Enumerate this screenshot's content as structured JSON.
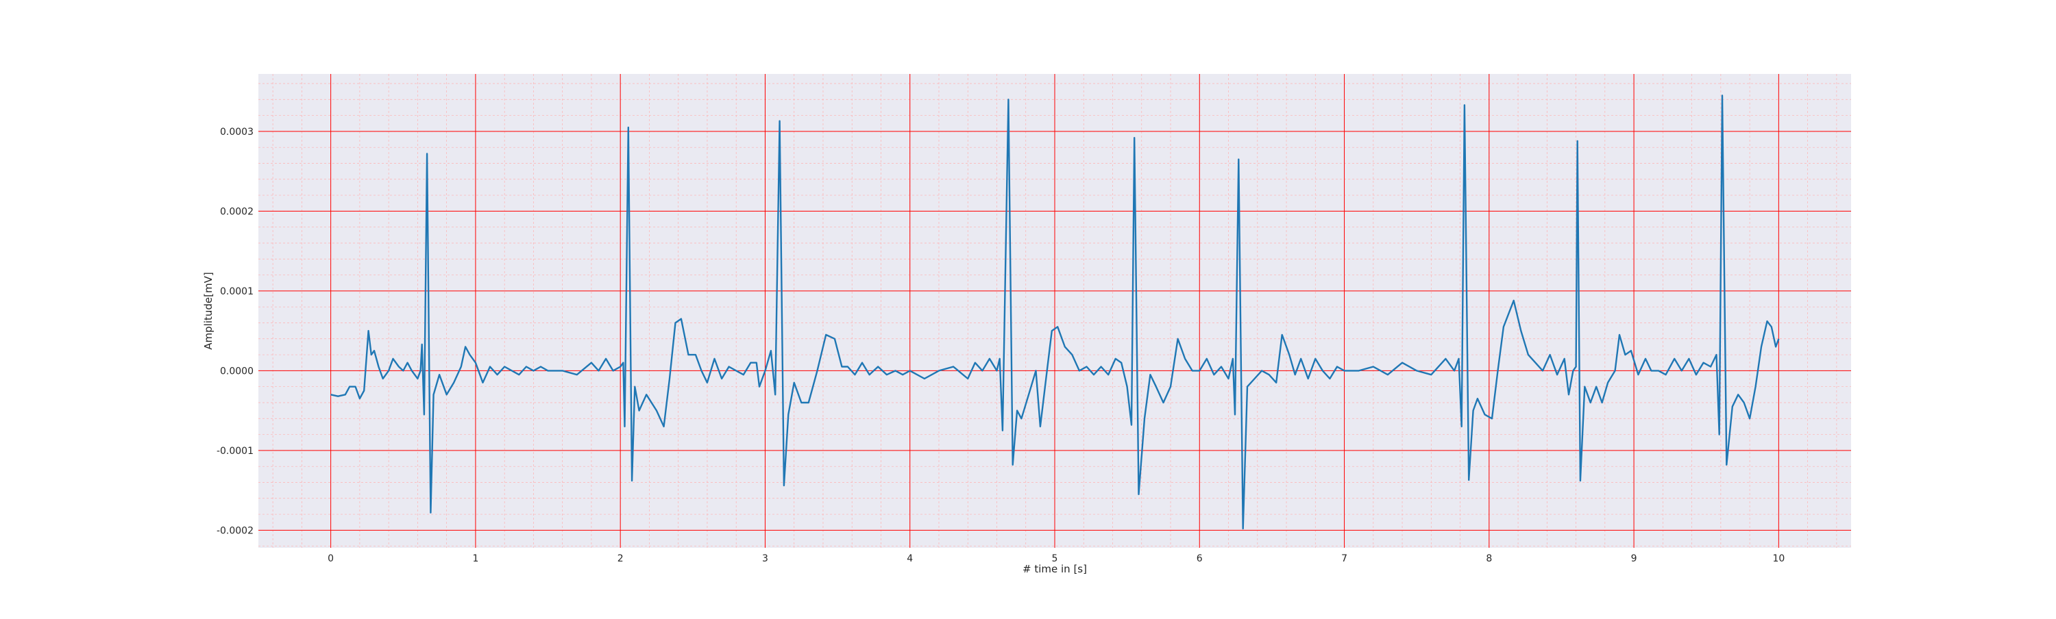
{
  "chart_data": {
    "type": "line",
    "title": "",
    "xlabel": "# time in [s]",
    "ylabel": "Amplitude[mV]",
    "xlim": [
      -0.5,
      10.5
    ],
    "ylim": [
      -0.000222,
      0.000372
    ],
    "x_ticks": [
      0,
      1,
      2,
      3,
      4,
      5,
      6,
      7,
      8,
      9,
      10
    ],
    "x_tick_labels": [
      "0",
      "1",
      "2",
      "3",
      "4",
      "5",
      "6",
      "7",
      "8",
      "9",
      "10"
    ],
    "y_ticks": [
      -0.0002,
      -0.0001,
      0.0,
      0.0001,
      0.0002,
      0.0003
    ],
    "y_tick_labels": [
      "-0.0002",
      "-0.0001",
      "0.0000",
      "0.0001",
      "0.0002",
      "0.0003"
    ],
    "grid": "major and minor",
    "colors": {
      "background": "#eaeaf2",
      "major_grid": "#ff0000",
      "minor_grid": "#ffb0b0",
      "line": "#1f77b4"
    },
    "series": [
      {
        "values_description_free": true,
        "points": [
          [
            0.0,
            -3e-05
          ],
          [
            0.05,
            -3.2e-05
          ],
          [
            0.1,
            -3e-05
          ],
          [
            0.13,
            -2e-05
          ],
          [
            0.17,
            -2e-05
          ],
          [
            0.2,
            -3.5e-05
          ],
          [
            0.23,
            -2.5e-05
          ],
          [
            0.26,
            5e-05
          ],
          [
            0.28,
            2e-05
          ],
          [
            0.3,
            2.5e-05
          ],
          [
            0.33,
            5e-06
          ],
          [
            0.36,
            -1e-05
          ],
          [
            0.4,
            0.0
          ],
          [
            0.43,
            1.5e-05
          ],
          [
            0.47,
            5e-06
          ],
          [
            0.5,
            0.0
          ],
          [
            0.53,
            1e-05
          ],
          [
            0.56,
            0.0
          ],
          [
            0.6,
            -1e-05
          ],
          [
            0.62,
            0.0
          ],
          [
            0.63,
            3.3e-05
          ],
          [
            0.645,
            -5.5e-05
          ],
          [
            0.665,
            0.000272
          ],
          [
            0.69,
            -0.000178
          ],
          [
            0.71,
            -3e-05
          ],
          [
            0.75,
            -5e-06
          ],
          [
            0.8,
            -3e-05
          ],
          [
            0.85,
            -1.5e-05
          ],
          [
            0.9,
            5e-06
          ],
          [
            0.93,
            3e-05
          ],
          [
            0.96,
            2e-05
          ],
          [
            1.0,
            1e-05
          ],
          [
            1.05,
            -1.5e-05
          ],
          [
            1.1,
            5e-06
          ],
          [
            1.15,
            -5e-06
          ],
          [
            1.2,
            5e-06
          ],
          [
            1.3,
            -5e-06
          ],
          [
            1.35,
            5e-06
          ],
          [
            1.4,
            0.0
          ],
          [
            1.45,
            5e-06
          ],
          [
            1.5,
            0.0
          ],
          [
            1.6,
            0.0
          ],
          [
            1.7,
            -5e-06
          ],
          [
            1.8,
            1e-05
          ],
          [
            1.85,
            0.0
          ],
          [
            1.9,
            1.5e-05
          ],
          [
            1.95,
            0.0
          ],
          [
            2.0,
            5e-06
          ],
          [
            2.02,
            1e-05
          ],
          [
            2.03,
            -7e-05
          ],
          [
            2.055,
            0.000305
          ],
          [
            2.08,
            -0.000138
          ],
          [
            2.1,
            -2e-05
          ],
          [
            2.13,
            -5e-05
          ],
          [
            2.18,
            -3e-05
          ],
          [
            2.25,
            -5e-05
          ],
          [
            2.3,
            -7e-05
          ],
          [
            2.34,
            -1e-05
          ],
          [
            2.38,
            6e-05
          ],
          [
            2.42,
            6.5e-05
          ],
          [
            2.47,
            2e-05
          ],
          [
            2.52,
            2e-05
          ],
          [
            2.56,
            0.0
          ],
          [
            2.6,
            -1.5e-05
          ],
          [
            2.65,
            1.5e-05
          ],
          [
            2.7,
            -1e-05
          ],
          [
            2.75,
            5e-06
          ],
          [
            2.8,
            0.0
          ],
          [
            2.85,
            -5e-06
          ],
          [
            2.9,
            1e-05
          ],
          [
            2.94,
            1e-05
          ],
          [
            2.96,
            -2e-05
          ],
          [
            3.0,
            0.0
          ],
          [
            3.04,
            2.5e-05
          ],
          [
            3.07,
            -3e-05
          ],
          [
            3.1,
            0.000313
          ],
          [
            3.13,
            -0.000144
          ],
          [
            3.16,
            -5.5e-05
          ],
          [
            3.2,
            -1.5e-05
          ],
          [
            3.25,
            -4e-05
          ],
          [
            3.3,
            -4e-05
          ],
          [
            3.36,
            0.0
          ],
          [
            3.42,
            4.5e-05
          ],
          [
            3.48,
            4e-05
          ],
          [
            3.53,
            5e-06
          ],
          [
            3.57,
            5e-06
          ],
          [
            3.62,
            -5e-06
          ],
          [
            3.67,
            1e-05
          ],
          [
            3.72,
            -5e-06
          ],
          [
            3.78,
            5e-06
          ],
          [
            3.84,
            -5e-06
          ],
          [
            3.9,
            0.0
          ],
          [
            3.95,
            -5e-06
          ],
          [
            4.0,
            0.0
          ],
          [
            4.1,
            -1e-05
          ],
          [
            4.2,
            0.0
          ],
          [
            4.3,
            5e-06
          ],
          [
            4.4,
            -1e-05
          ],
          [
            4.45,
            1e-05
          ],
          [
            4.5,
            0.0
          ],
          [
            4.55,
            1.5e-05
          ],
          [
            4.6,
            0.0
          ],
          [
            4.62,
            1.5e-05
          ],
          [
            4.64,
            -7.5e-05
          ],
          [
            4.68,
            0.00034
          ],
          [
            4.71,
            -0.000118
          ],
          [
            4.74,
            -5e-05
          ],
          [
            4.77,
            -6e-05
          ],
          [
            4.82,
            -3e-05
          ],
          [
            4.87,
            -0.0
          ],
          [
            4.9,
            -7e-05
          ],
          [
            4.94,
            -1e-05
          ],
          [
            4.98,
            5e-05
          ],
          [
            5.02,
            5.5e-05
          ],
          [
            5.07,
            3e-05
          ],
          [
            5.12,
            2e-05
          ],
          [
            5.17,
            0.0
          ],
          [
            5.22,
            5e-06
          ],
          [
            5.27,
            -5e-06
          ],
          [
            5.32,
            5e-06
          ],
          [
            5.37,
            -5e-06
          ],
          [
            5.42,
            1.5e-05
          ],
          [
            5.46,
            1e-05
          ],
          [
            5.5,
            -2e-05
          ],
          [
            5.53,
            -6.8e-05
          ],
          [
            5.55,
            0.000292
          ],
          [
            5.58,
            -0.000155
          ],
          [
            5.62,
            -6e-05
          ],
          [
            5.66,
            -5e-06
          ],
          [
            5.7,
            -2e-05
          ],
          [
            5.75,
            -4e-05
          ],
          [
            5.8,
            -2e-05
          ],
          [
            5.85,
            4e-05
          ],
          [
            5.9,
            1.5e-05
          ],
          [
            5.95,
            0.0
          ],
          [
            6.0,
            0.0
          ],
          [
            6.05,
            1.5e-05
          ],
          [
            6.1,
            -5e-06
          ],
          [
            6.15,
            5e-06
          ],
          [
            6.2,
            -1e-05
          ],
          [
            6.23,
            1.5e-05
          ],
          [
            6.245,
            -5.5e-05
          ],
          [
            6.27,
            0.000265
          ],
          [
            6.3,
            -0.000198
          ],
          [
            6.33,
            -2e-05
          ],
          [
            6.38,
            -1e-05
          ],
          [
            6.43,
            0.0
          ],
          [
            6.48,
            -5e-06
          ],
          [
            6.53,
            -1.5e-05
          ],
          [
            6.57,
            4.5e-05
          ],
          [
            6.62,
            2e-05
          ],
          [
            6.66,
            -5e-06
          ],
          [
            6.7,
            1.5e-05
          ],
          [
            6.75,
            -1e-05
          ],
          [
            6.8,
            1.5e-05
          ],
          [
            6.85,
            0.0
          ],
          [
            6.9,
            -1e-05
          ],
          [
            6.95,
            5e-06
          ],
          [
            7.0,
            0.0
          ],
          [
            7.1,
            0.0
          ],
          [
            7.2,
            5e-06
          ],
          [
            7.3,
            -5e-06
          ],
          [
            7.4,
            1e-05
          ],
          [
            7.5,
            0.0
          ],
          [
            7.6,
            -5e-06
          ],
          [
            7.7,
            1.5e-05
          ],
          [
            7.76,
            0.0
          ],
          [
            7.79,
            1.5e-05
          ],
          [
            7.81,
            -7e-05
          ],
          [
            7.83,
            0.000333
          ],
          [
            7.86,
            -0.000137
          ],
          [
            7.89,
            -5e-05
          ],
          [
            7.92,
            -3.5e-05
          ],
          [
            7.97,
            -5.5e-05
          ],
          [
            8.02,
            -6e-05
          ],
          [
            8.06,
            -0.0
          ],
          [
            8.1,
            5.5e-05
          ],
          [
            8.17,
            8.8e-05
          ],
          [
            8.22,
            5e-05
          ],
          [
            8.27,
            2e-05
          ],
          [
            8.32,
            1e-05
          ],
          [
            8.37,
            0.0
          ],
          [
            8.42,
            2e-05
          ],
          [
            8.47,
            -5e-06
          ],
          [
            8.52,
            1.5e-05
          ],
          [
            8.55,
            -3e-05
          ],
          [
            8.58,
            0.0
          ],
          [
            8.6,
            5e-06
          ],
          [
            8.61,
            0.000288
          ],
          [
            8.63,
            -0.000138
          ],
          [
            8.66,
            -2e-05
          ],
          [
            8.7,
            -4e-05
          ],
          [
            8.74,
            -2e-05
          ],
          [
            8.78,
            -4e-05
          ],
          [
            8.82,
            -1.5e-05
          ],
          [
            8.87,
            0.0
          ],
          [
            8.9,
            4.5e-05
          ],
          [
            8.94,
            2e-05
          ],
          [
            8.98,
            2.5e-05
          ],
          [
            9.03,
            -5e-06
          ],
          [
            9.08,
            1.5e-05
          ],
          [
            9.12,
            0.0
          ],
          [
            9.17,
            0.0
          ],
          [
            9.22,
            -5e-06
          ],
          [
            9.28,
            1.5e-05
          ],
          [
            9.33,
            0.0
          ],
          [
            9.38,
            1.5e-05
          ],
          [
            9.43,
            -5e-06
          ],
          [
            9.48,
            1e-05
          ],
          [
            9.53,
            5e-06
          ],
          [
            9.57,
            2e-05
          ],
          [
            9.59,
            -8e-05
          ],
          [
            9.61,
            0.000345
          ],
          [
            9.64,
            -0.000118
          ],
          [
            9.68,
            -4.5e-05
          ],
          [
            9.72,
            -3e-05
          ],
          [
            9.76,
            -4e-05
          ],
          [
            9.8,
            -6e-05
          ],
          [
            9.84,
            -2e-05
          ],
          [
            9.88,
            3e-05
          ],
          [
            9.92,
            6.2e-05
          ],
          [
            9.95,
            5.5e-05
          ],
          [
            9.98,
            3e-05
          ],
          [
            10.0,
            4e-05
          ]
        ]
      }
    ]
  }
}
